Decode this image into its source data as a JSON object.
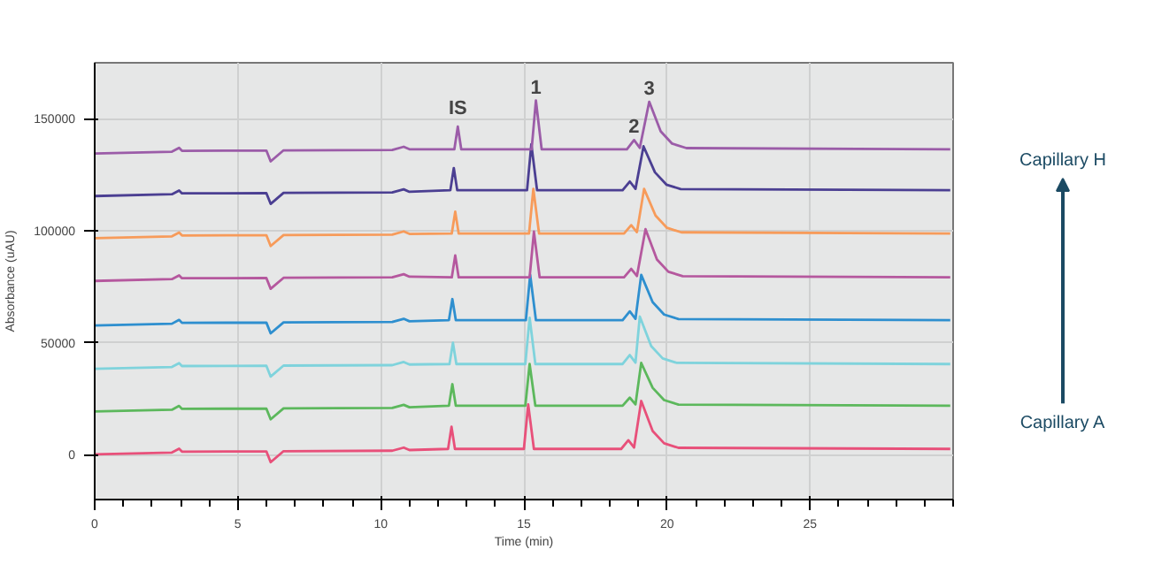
{
  "chart_data": {
    "type": "line",
    "xlabel": "Time (min)",
    "ylabel": "Absorbance (uAU)",
    "xlim": [
      0,
      30
    ],
    "ylim": [
      -20000,
      175000
    ],
    "xticks": [
      0,
      5,
      10,
      15,
      20,
      25
    ],
    "yticks": [
      0,
      50000,
      100000,
      150000
    ],
    "grid": true,
    "marker": "none",
    "line_style": "solid",
    "annotations": [
      {
        "text": "IS",
        "x": 12.69,
        "y": 146500
      },
      {
        "text": "1",
        "x": 15.42,
        "y": 158200
      },
      {
        "text": "2",
        "x": 18.85,
        "y": 140500
      },
      {
        "text": "3",
        "x": 19.38,
        "y": 157600
      },
      "Capillary H",
      "Capillary A"
    ],
    "series": [
      {
        "color": "#e8507a",
        "x": [
          0,
          2.7,
          2.95,
          3.05,
          6.0,
          6.15,
          6.6,
          10.4,
          10.8,
          11.0,
          12.35,
          12.47,
          12.59,
          15.0,
          15.15,
          15.35,
          18.4,
          18.65,
          18.85,
          19.1,
          19.5,
          19.9,
          20.4,
          29.9
        ],
        "values": [
          200,
          1000,
          2700,
          1400,
          1500,
          -3300,
          1600,
          1800,
          3200,
          2100,
          2600,
          12500,
          2600,
          2600,
          22500,
          2600,
          2600,
          6500,
          3200,
          24000,
          10600,
          5100,
          3100,
          2600
        ]
      },
      {
        "color": "#5cb85c",
        "x": [
          0,
          2.7,
          2.95,
          3.05,
          6.0,
          6.15,
          6.6,
          10.4,
          10.8,
          11.0,
          12.38,
          12.5,
          12.62,
          15.05,
          15.2,
          15.4,
          18.45,
          18.7,
          18.9,
          19.1,
          19.5,
          19.9,
          20.4,
          29.9
        ],
        "values": [
          19300,
          20100,
          21800,
          20500,
          20600,
          15800,
          20700,
          20900,
          22300,
          21200,
          21900,
          31500,
          21900,
          21900,
          40500,
          21900,
          21900,
          25500,
          22500,
          41000,
          29900,
          24400,
          22400,
          21900
        ]
      },
      {
        "color": "#7fd3dc",
        "x": [
          0,
          2.7,
          2.95,
          3.05,
          6.0,
          6.15,
          6.6,
          10.4,
          10.8,
          11.0,
          12.4,
          12.52,
          12.64,
          15.05,
          15.2,
          15.4,
          18.45,
          18.7,
          18.9,
          19.05,
          19.45,
          19.85,
          20.35,
          29.9
        ],
        "values": [
          38400,
          39200,
          40900,
          39600,
          39700,
          34900,
          39800,
          40000,
          41400,
          40300,
          40500,
          50000,
          40500,
          40500,
          61200,
          40500,
          40500,
          44500,
          41100,
          61700,
          48500,
          43000,
          41000,
          40500
        ]
      },
      {
        "color": "#2e8fcf",
        "x": [
          0,
          2.7,
          2.95,
          3.05,
          6.0,
          6.15,
          6.6,
          10.4,
          10.8,
          11.0,
          12.38,
          12.5,
          12.62,
          15.07,
          15.22,
          15.42,
          18.45,
          18.7,
          18.9,
          19.1,
          19.5,
          19.9,
          20.4,
          29.9
        ],
        "values": [
          57700,
          58500,
          60200,
          58900,
          59000,
          54200,
          59100,
          59300,
          60700,
          59600,
          60100,
          69500,
          60100,
          60100,
          80300,
          60100,
          60100,
          64000,
          60700,
          80300,
          68100,
          62600,
          60600,
          60100
        ]
      },
      {
        "color": "#b5589e",
        "x": [
          0,
          2.7,
          2.95,
          3.05,
          6.0,
          6.15,
          6.6,
          10.4,
          10.8,
          11.0,
          12.48,
          12.6,
          12.72,
          15.2,
          15.35,
          15.55,
          18.5,
          18.75,
          18.95,
          19.25,
          19.65,
          20.05,
          20.55,
          29.9
        ],
        "values": [
          77600,
          78400,
          80100,
          78800,
          78900,
          74100,
          79000,
          79200,
          80600,
          79500,
          79200,
          89000,
          79200,
          79200,
          99600,
          79200,
          79200,
          83000,
          79800,
          100700,
          87200,
          81700,
          79700,
          79200
        ]
      },
      {
        "color": "#f79b5a",
        "x": [
          0,
          2.7,
          2.95,
          3.05,
          6.0,
          6.15,
          6.6,
          10.4,
          10.8,
          11.0,
          12.48,
          12.6,
          12.72,
          15.18,
          15.33,
          15.53,
          18.5,
          18.75,
          18.95,
          19.2,
          19.6,
          20.0,
          20.5,
          29.9
        ],
        "values": [
          96700,
          97500,
          99200,
          97900,
          98000,
          93200,
          98100,
          98300,
          99700,
          98600,
          98800,
          108500,
          98800,
          98800,
          118700,
          98800,
          98800,
          102500,
          99400,
          118700,
          106800,
          101300,
          99300,
          98800
        ]
      },
      {
        "color": "#4b3f92",
        "x": [
          0,
          2.7,
          2.95,
          3.05,
          6.0,
          6.15,
          6.6,
          10.4,
          10.8,
          11.0,
          12.43,
          12.55,
          12.67,
          15.11,
          15.26,
          15.46,
          18.45,
          18.7,
          18.9,
          19.18,
          19.58,
          19.98,
          20.48,
          29.9
        ],
        "values": [
          115500,
          116300,
          118000,
          116700,
          116800,
          112000,
          116900,
          117100,
          118500,
          117400,
          118100,
          128000,
          118100,
          118100,
          138600,
          118100,
          118100,
          122000,
          118700,
          137700,
          126100,
          120600,
          118600,
          118100
        ]
      },
      {
        "color": "#9b5ca8",
        "x": [
          0,
          2.7,
          2.95,
          3.05,
          6.0,
          6.15,
          6.6,
          10.4,
          10.8,
          11.0,
          12.57,
          12.69,
          12.81,
          15.27,
          15.42,
          15.62,
          18.6,
          18.85,
          19.05,
          19.38,
          19.78,
          20.18,
          20.68,
          29.9
        ],
        "values": [
          134500,
          135300,
          137000,
          135700,
          135800,
          131000,
          135900,
          136100,
          137500,
          136400,
          136400,
          146500,
          136400,
          136400,
          158200,
          136400,
          136400,
          140500,
          137000,
          157600,
          144400,
          138900,
          136900,
          136400
        ]
      }
    ]
  }
}
